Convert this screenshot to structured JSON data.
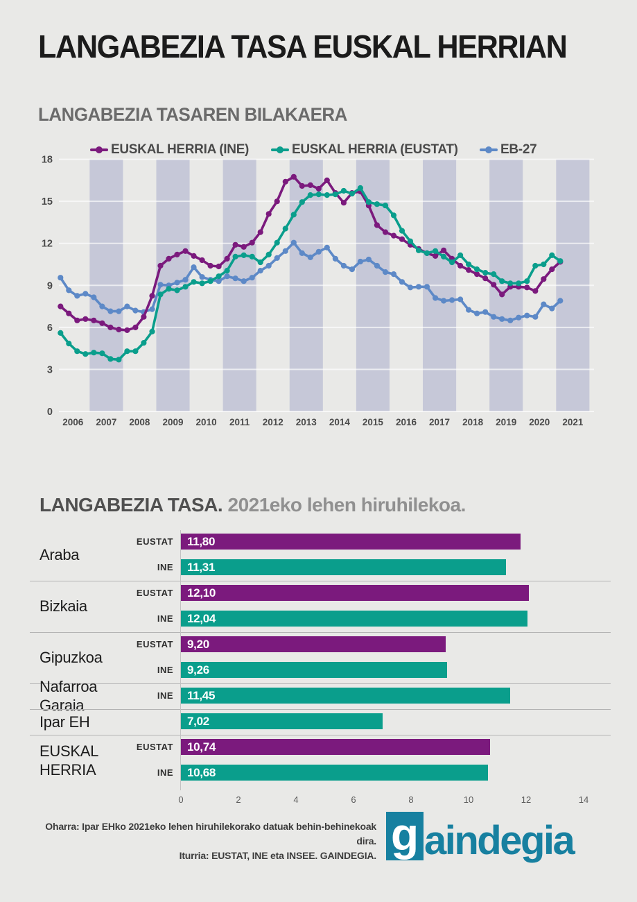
{
  "page": {
    "background": "#e9e9e7",
    "band_color": "#c6c8d8",
    "separator_color": "#b3b3b3"
  },
  "header": {
    "title": "LANGABEZIA TASA EUSKAL HERRIAN"
  },
  "line_section": {
    "title": "LANGABEZIA TASAREN BILAKAERA"
  },
  "chart_data": [
    {
      "type": "line",
      "title": "LANGABEZIA TASAREN BILAKAERA",
      "x_unit": "quarter",
      "start_year": 2006,
      "end_label": "2021Q1",
      "years": [
        2006,
        2007,
        2008,
        2009,
        2010,
        2011,
        2012,
        2013,
        2014,
        2015,
        2016,
        2017,
        2018,
        2019,
        2020,
        2021
      ],
      "shaded_years": [
        2007,
        2009,
        2011,
        2013,
        2015,
        2017,
        2019,
        2021
      ],
      "y_ticks": [
        0,
        3,
        6,
        9,
        12,
        15,
        18
      ],
      "ylim": [
        0,
        18
      ],
      "grid": true,
      "legend_position": "top",
      "series": [
        {
          "name": "EUSKAL HERRIA (INE)",
          "color": "#7b1a7d",
          "values": [
            7.5,
            7.0,
            6.5,
            6.6,
            6.5,
            6.3,
            6.0,
            5.85,
            5.8,
            6.0,
            6.75,
            8.25,
            10.4,
            10.9,
            11.2,
            11.45,
            11.1,
            10.8,
            10.4,
            10.35,
            10.9,
            11.9,
            11.75,
            12.05,
            12.8,
            14.1,
            15.0,
            16.4,
            16.75,
            16.1,
            16.15,
            15.9,
            16.5,
            15.6,
            14.9,
            15.6,
            15.7,
            14.7,
            13.3,
            12.8,
            12.55,
            12.3,
            11.9,
            11.6,
            11.3,
            11.1,
            11.5,
            10.9,
            10.4,
            10.1,
            9.8,
            9.5,
            9.05,
            8.35,
            8.9,
            8.9,
            8.85,
            8.6,
            9.45,
            10.15,
            10.68
          ]
        },
        {
          "name": "EUSKAL HERRIA (EUSTAT)",
          "color": "#0a9e8c",
          "values": [
            5.6,
            4.85,
            4.3,
            4.1,
            4.2,
            4.15,
            3.75,
            3.7,
            4.3,
            4.3,
            4.9,
            5.7,
            8.35,
            8.75,
            8.65,
            8.9,
            9.25,
            9.15,
            9.3,
            9.65,
            10.05,
            11.05,
            11.15,
            11.05,
            10.65,
            11.2,
            12.05,
            13.05,
            14.05,
            14.95,
            15.45,
            15.5,
            15.45,
            15.5,
            15.75,
            15.55,
            15.95,
            14.95,
            14.8,
            14.7,
            14.0,
            12.9,
            12.15,
            11.5,
            11.3,
            11.45,
            11.05,
            10.65,
            11.15,
            10.5,
            10.15,
            9.9,
            9.8,
            9.3,
            9.15,
            9.15,
            9.3,
            10.4,
            10.5,
            11.15,
            10.74
          ]
        },
        {
          "name": "EB-27",
          "color": "#5d89c7",
          "values": [
            9.55,
            8.65,
            8.25,
            8.4,
            8.15,
            7.5,
            7.15,
            7.15,
            7.5,
            7.2,
            7.1,
            7.3,
            9.05,
            9.0,
            9.2,
            9.4,
            10.3,
            9.6,
            9.4,
            9.3,
            9.65,
            9.5,
            9.3,
            9.55,
            10.05,
            10.4,
            10.95,
            11.45,
            12.05,
            11.3,
            11.0,
            11.4,
            11.7,
            10.9,
            10.4,
            10.15,
            10.7,
            10.85,
            10.4,
            9.95,
            9.8,
            9.25,
            8.85,
            8.9,
            8.9,
            8.1,
            7.9,
            7.95,
            8.0,
            7.25,
            7.0,
            7.1,
            6.75,
            6.6,
            6.5,
            6.7,
            6.85,
            6.75,
            7.65,
            7.35,
            7.9
          ]
        }
      ]
    },
    {
      "type": "bar",
      "orientation": "horizontal",
      "title": "LANGABEZIA TASA. 2021eko lehen hiruhilekoa.",
      "xlim": [
        0,
        14
      ],
      "x_ticks": [
        0,
        2,
        4,
        6,
        8,
        10,
        12,
        14
      ],
      "colors": {
        "EUSTAT": "#7b1a7d",
        "INE": "#0a9e8c"
      },
      "groups": [
        {
          "label": "Araba",
          "rows": [
            {
              "source": "EUSTAT",
              "display": "11,80",
              "value": 11.8,
              "color": "#7b1a7d"
            },
            {
              "source": "INE",
              "display": "11,31",
              "value": 11.31,
              "color": "#0a9e8c"
            }
          ]
        },
        {
          "label": "Bizkaia",
          "rows": [
            {
              "source": "EUSTAT",
              "display": "12,10",
              "value": 12.1,
              "color": "#7b1a7d"
            },
            {
              "source": "INE",
              "display": "12,04",
              "value": 12.04,
              "color": "#0a9e8c"
            }
          ]
        },
        {
          "label": "Gipuzkoa",
          "rows": [
            {
              "source": "EUSTAT",
              "display": "9,20",
              "value": 9.2,
              "color": "#7b1a7d"
            },
            {
              "source": "INE",
              "display": "9,26",
              "value": 9.26,
              "color": "#0a9e8c"
            }
          ]
        },
        {
          "label": "Nafarroa Garaia",
          "rows": [
            {
              "source": "INE",
              "display": "11,45",
              "value": 11.45,
              "color": "#0a9e8c"
            }
          ]
        },
        {
          "label": "Ipar EH",
          "rows": [
            {
              "source": "",
              "display": "7,02",
              "value": 7.02,
              "color": "#0a9e8c"
            }
          ]
        },
        {
          "label": "EUSKAL HERRIA",
          "rows": [
            {
              "source": "EUSTAT",
              "display": "10,74",
              "value": 10.74,
              "color": "#7b1a7d"
            },
            {
              "source": "INE",
              "display": "10,68",
              "value": 10.68,
              "color": "#0a9e8c"
            }
          ]
        }
      ]
    }
  ],
  "bar_section": {
    "title_strong": "LANGABEZIA TASA.",
    "title_rest": " 2021eko lehen hiruhilekoa."
  },
  "footer": {
    "note_line1": "Oharra: Ipar EHko 2021eko lehen hiruhilekorako datuak behin-behinekoak dira.",
    "note_line2": "Iturria: EUSTAT, INE eta INSEE. GAINDEGIA.",
    "logo": {
      "g": "g",
      "rest": "aindegia",
      "color": "#1780a0"
    }
  }
}
